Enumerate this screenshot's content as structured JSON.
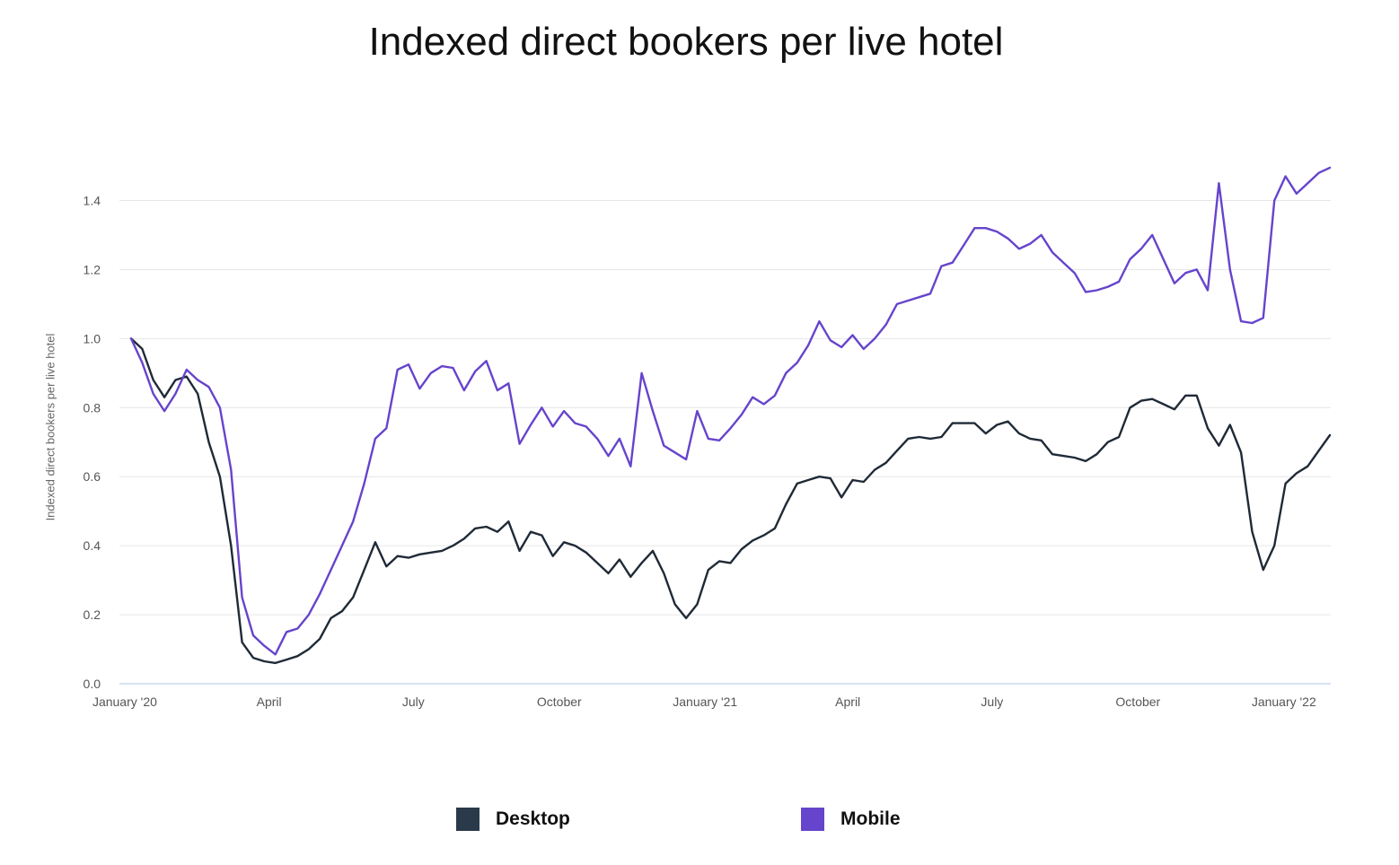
{
  "chart_data": {
    "type": "line",
    "title": "Indexed direct bookers per live hotel",
    "xlabel": "",
    "ylabel": "Indexed direct bookers per live hotel",
    "ylim": [
      0,
      1.5
    ],
    "yticks": [
      "0.0",
      "0.2",
      "0.4",
      "0.6",
      "0.8",
      "1.0",
      "1.2",
      "1.4"
    ],
    "xticks": [
      "January '20",
      "April",
      "July",
      "October",
      "January '21",
      "April",
      "July",
      "October",
      "January '22"
    ],
    "x_start": "2020-01-05",
    "x_step_days": 7,
    "grid": true,
    "legend_position": "bottom",
    "series": [
      {
        "name": "Desktop",
        "color": "#1f2a37",
        "values": [
          1.0,
          0.97,
          0.88,
          0.83,
          0.88,
          0.89,
          0.84,
          0.7,
          0.6,
          0.4,
          0.12,
          0.075,
          0.065,
          0.06,
          0.07,
          0.08,
          0.1,
          0.13,
          0.19,
          0.21,
          0.25,
          0.33,
          0.41,
          0.34,
          0.37,
          0.365,
          0.375,
          0.38,
          0.385,
          0.4,
          0.42,
          0.45,
          0.455,
          0.44,
          0.47,
          0.385,
          0.44,
          0.43,
          0.37,
          0.41,
          0.4,
          0.38,
          0.35,
          0.32,
          0.36,
          0.31,
          0.35,
          0.385,
          0.32,
          0.23,
          0.19,
          0.23,
          0.33,
          0.355,
          0.35,
          0.39,
          0.415,
          0.43,
          0.45,
          0.52,
          0.58,
          0.59,
          0.6,
          0.595,
          0.54,
          0.59,
          0.585,
          0.62,
          0.64,
          0.675,
          0.71,
          0.715,
          0.71,
          0.715,
          0.755,
          0.755,
          0.755,
          0.725,
          0.75,
          0.76,
          0.725,
          0.71,
          0.705,
          0.665,
          0.66,
          0.655,
          0.645,
          0.665,
          0.7,
          0.715,
          0.8,
          0.82,
          0.825,
          0.81,
          0.795,
          0.835,
          0.835,
          0.74,
          0.69,
          0.75,
          0.67,
          0.44,
          0.33,
          0.4,
          0.58,
          0.61,
          0.63,
          0.675,
          0.72
        ]
      },
      {
        "name": "Mobile",
        "color": "#6644cc",
        "values": [
          1.0,
          0.93,
          0.84,
          0.79,
          0.84,
          0.91,
          0.88,
          0.86,
          0.8,
          0.62,
          0.25,
          0.14,
          0.11,
          0.085,
          0.15,
          0.16,
          0.2,
          0.26,
          0.33,
          0.4,
          0.47,
          0.58,
          0.71,
          0.74,
          0.91,
          0.925,
          0.855,
          0.9,
          0.92,
          0.915,
          0.85,
          0.905,
          0.935,
          0.85,
          0.87,
          0.695,
          0.75,
          0.8,
          0.745,
          0.79,
          0.755,
          0.745,
          0.71,
          0.66,
          0.71,
          0.63,
          0.9,
          0.79,
          0.69,
          0.67,
          0.65,
          0.79,
          0.71,
          0.705,
          0.74,
          0.78,
          0.83,
          0.81,
          0.835,
          0.9,
          0.93,
          0.98,
          1.05,
          0.995,
          0.975,
          1.01,
          0.97,
          1.0,
          1.04,
          1.1,
          1.11,
          1.12,
          1.13,
          1.21,
          1.22,
          1.27,
          1.32,
          1.32,
          1.31,
          1.29,
          1.26,
          1.275,
          1.3,
          1.25,
          1.22,
          1.19,
          1.135,
          1.14,
          1.15,
          1.165,
          1.23,
          1.26,
          1.3,
          1.23,
          1.16,
          1.19,
          1.2,
          1.14,
          1.45,
          1.2,
          1.05,
          1.045,
          1.06,
          1.4,
          1.47,
          1.42,
          1.45,
          1.48,
          1.495
        ]
      }
    ]
  }
}
